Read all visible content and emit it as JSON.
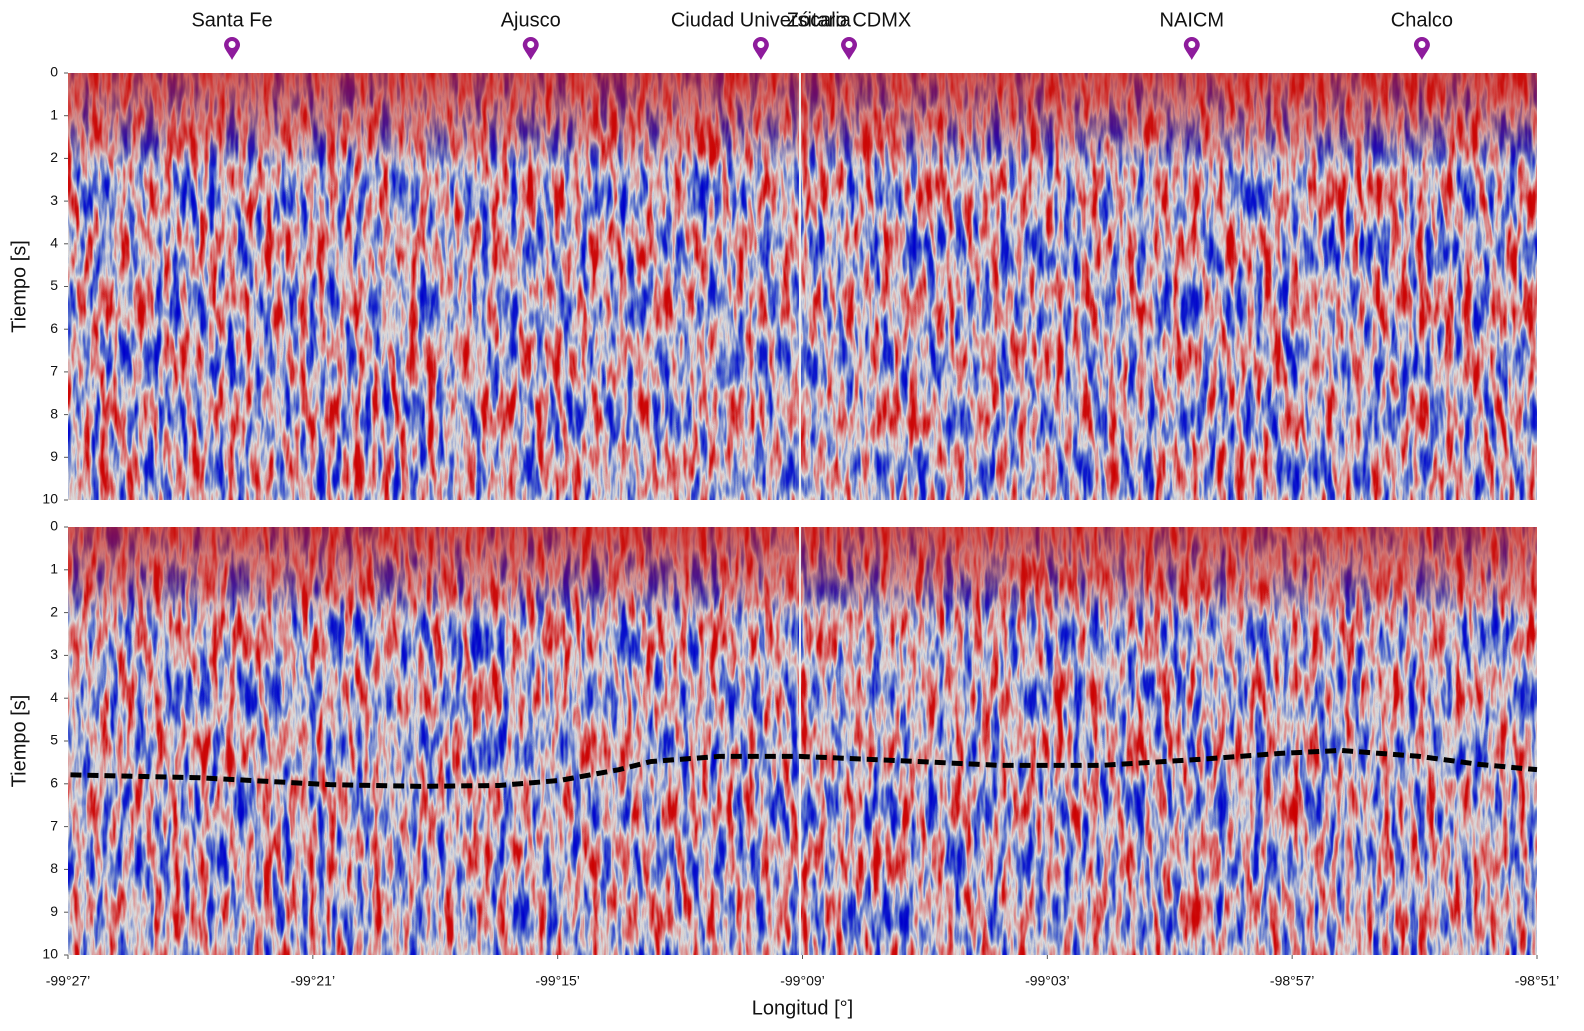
{
  "chart_data": [
    {
      "type": "seismic",
      "ylabel": "Tiempo [s]",
      "xlim": [
        -99.45,
        -98.85
      ],
      "ylim": [
        0,
        10
      ],
      "yticks": [
        0,
        1,
        2,
        3,
        4,
        5,
        6,
        7,
        8,
        9,
        10
      ],
      "markers": {
        "color": "#8e1b9c",
        "labels": [
          "Santa Fe",
          "Ajusco",
          "Ciudad Universitaria",
          "Zócalo CDMX",
          "NAICM",
          "Chalco"
        ],
        "x": [
          -99.383,
          -99.261,
          -99.167,
          -99.131,
          -98.991,
          -98.897
        ]
      }
    },
    {
      "type": "line",
      "ylabel": "Tiempo [s]",
      "xlabel": "Longitud [°]",
      "xlim": [
        -99.45,
        -98.85
      ],
      "xticks": [
        {
          "value": -99.45,
          "label": "-99°27’"
        },
        {
          "value": -99.35,
          "label": "-99°21’"
        },
        {
          "value": -99.25,
          "label": "-99°15’"
        },
        {
          "value": -99.15,
          "label": "-99°09’"
        },
        {
          "value": -99.05,
          "label": "-99°03’"
        },
        {
          "value": -98.95,
          "label": "-98°57’"
        },
        {
          "value": -98.85,
          "label": "-98°51’"
        }
      ],
      "ylim": [
        0,
        10
      ],
      "yticks": [
        0,
        1,
        2,
        3,
        4,
        5,
        6,
        7,
        8,
        9,
        10
      ],
      "series": [
        {
          "color": "#000000",
          "x": [
            -99.449,
            -99.396,
            -99.343,
            -99.306,
            -99.274,
            -99.249,
            -99.225,
            -99.212,
            -99.184,
            -99.151,
            -99.11,
            -99.069,
            -99.028,
            -98.988,
            -98.955,
            -98.93,
            -98.898,
            -98.873,
            -98.85
          ],
          "values": [
            5.79,
            5.86,
            6.02,
            6.06,
            6.04,
            5.92,
            5.67,
            5.48,
            5.36,
            5.36,
            5.46,
            5.57,
            5.57,
            5.43,
            5.29,
            5.22,
            5.36,
            5.55,
            5.67
          ]
        }
      ]
    }
  ]
}
